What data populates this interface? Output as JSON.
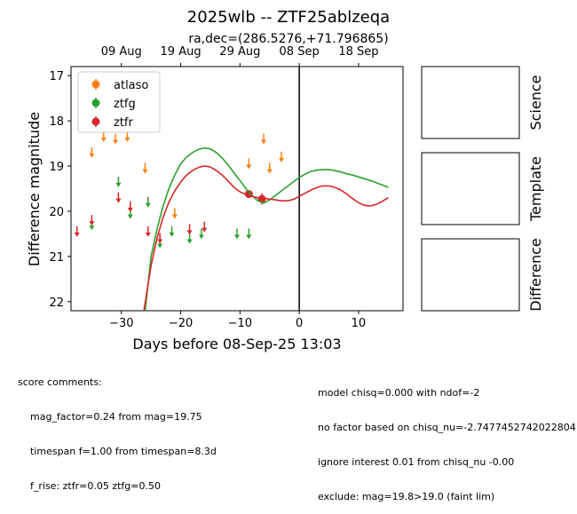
{
  "chart_data": {
    "type": "scatter",
    "title": "2025wlb -- ZTF25ablzeqa",
    "subtitle": "ra,dec=(286.5276,+71.796865)",
    "xlabel": "Days before 08-Sep-25 13:03",
    "ylabel": "Difference magnitude",
    "xlim": [
      -38.5,
      17.5
    ],
    "ylim": [
      22.2,
      16.8
    ],
    "x_ticks": [
      -30,
      -20,
      -10,
      0,
      10
    ],
    "y_ticks": [
      17,
      18,
      19,
      20,
      21,
      22
    ],
    "top_axis_ticks": [
      {
        "label": "09 Aug",
        "x": -30
      },
      {
        "label": "19 Aug",
        "x": -20
      },
      {
        "label": "29 Aug",
        "x": -10
      },
      {
        "label": "08 Sep",
        "x": 0
      },
      {
        "label": "18 Sep",
        "x": 10
      }
    ],
    "vline_x": 0,
    "legend": {
      "position": "top-left",
      "entries": [
        "atlaso",
        "ztfg",
        "ztfr"
      ]
    },
    "colors": {
      "atlaso": "#ff7f0e",
      "ztfg": "#2ca02c",
      "ztfr": "#d62728",
      "vline": "#000000"
    },
    "series": [
      {
        "name": "atlaso",
        "kind": "upper_limit",
        "color": "#ff7f0e",
        "x": [
          -35,
          -33,
          -31,
          -29,
          -26,
          -21,
          -8.5,
          -6,
          -5,
          -3
        ],
        "y": [
          18.7,
          18.35,
          18.4,
          18.35,
          19.05,
          20.05,
          18.95,
          18.4,
          19.05,
          18.8
        ]
      },
      {
        "name": "ztfg",
        "kind": "upper_limit",
        "color": "#2ca02c",
        "x": [
          -35,
          -30.5,
          -28.5,
          -25.5,
          -23.5,
          -21.5,
          -18.5,
          -16.5,
          -10.5,
          -8.5
        ],
        "y": [
          20.3,
          19.35,
          20.05,
          19.8,
          20.7,
          20.45,
          20.6,
          20.5,
          20.5,
          20.5
        ]
      },
      {
        "name": "ztfr",
        "kind": "upper_limit",
        "color": "#d62728",
        "x": [
          -37.5,
          -35,
          -30.5,
          -28.5,
          -25.5,
          -23.5,
          -18.5,
          -16
        ],
        "y": [
          20.45,
          20.2,
          19.7,
          19.9,
          20.45,
          20.6,
          20.4,
          20.35
        ]
      },
      {
        "name": "ztfr",
        "kind": "detection",
        "color": "#d62728",
        "x": [
          -8.5,
          -6.3
        ],
        "y": [
          19.62,
          19.73
        ],
        "yerr": [
          0.08,
          0.12
        ]
      },
      {
        "name": "ztfg model",
        "kind": "model",
        "color": "#2ca02c",
        "x": [
          -26,
          -25,
          -24,
          -23,
          -22,
          -21,
          -20,
          -19,
          -18,
          -17,
          -16,
          -15,
          -14,
          -13,
          -12,
          -11,
          -10,
          -9,
          -8,
          -7,
          -6,
          -5,
          -4,
          -3,
          -2,
          -1,
          0,
          1,
          2,
          3,
          4,
          5,
          6,
          7,
          8,
          9,
          10,
          11,
          12,
          13,
          14,
          15
        ],
        "y": [
          22.2,
          21.0,
          20.4,
          19.9,
          19.5,
          19.2,
          18.95,
          18.8,
          18.7,
          18.63,
          18.6,
          18.62,
          18.7,
          18.82,
          18.98,
          19.15,
          19.32,
          19.5,
          19.65,
          19.77,
          19.82,
          19.75,
          19.65,
          19.55,
          19.45,
          19.35,
          19.25,
          19.18,
          19.12,
          19.09,
          19.08,
          19.08,
          19.1,
          19.13,
          19.17,
          19.2,
          19.24,
          19.28,
          19.32,
          19.37,
          19.42,
          19.47
        ]
      },
      {
        "name": "ztfr model",
        "kind": "model",
        "color": "#d62728",
        "x": [
          -26.2,
          -25,
          -24,
          -23,
          -22,
          -21,
          -20,
          -19,
          -18,
          -17,
          -16,
          -15,
          -14,
          -13,
          -12,
          -11,
          -10,
          -9,
          -8,
          -7,
          -6,
          -5,
          -4,
          -3,
          -2,
          -1,
          0,
          1,
          2,
          3,
          4,
          5,
          6,
          7,
          8,
          9,
          10,
          11,
          12,
          13,
          14,
          15
        ],
        "y": [
          22.2,
          21.2,
          20.6,
          20.15,
          19.8,
          19.55,
          19.35,
          19.2,
          19.1,
          19.03,
          19.0,
          19.02,
          19.1,
          19.2,
          19.33,
          19.47,
          19.57,
          19.63,
          19.67,
          19.7,
          19.72,
          19.73,
          19.75,
          19.77,
          19.77,
          19.74,
          19.67,
          19.6,
          19.53,
          19.47,
          19.44,
          19.44,
          19.47,
          19.53,
          19.62,
          19.72,
          19.81,
          19.87,
          19.88,
          19.85,
          19.78,
          19.7
        ]
      }
    ]
  },
  "side_panels": [
    "Science",
    "Template",
    "Difference"
  ],
  "comments": {
    "left": [
      "score comments:",
      "    mag_factor=0.24 from mag=19.75",
      "    timespan f=1.00 from timespan=8.3d",
      "    f_rise: ztfr=0.05 ztfg=0.50"
    ],
    "right": [
      "model chisq=0.000 with ndof=-2",
      "no factor based on chisq_nu=-2.7477452742022804",
      "ignore interest 0.01 from chisq_nu -0.00",
      "exclude: mag=19.8>19.0 (faint lim)"
    ]
  }
}
